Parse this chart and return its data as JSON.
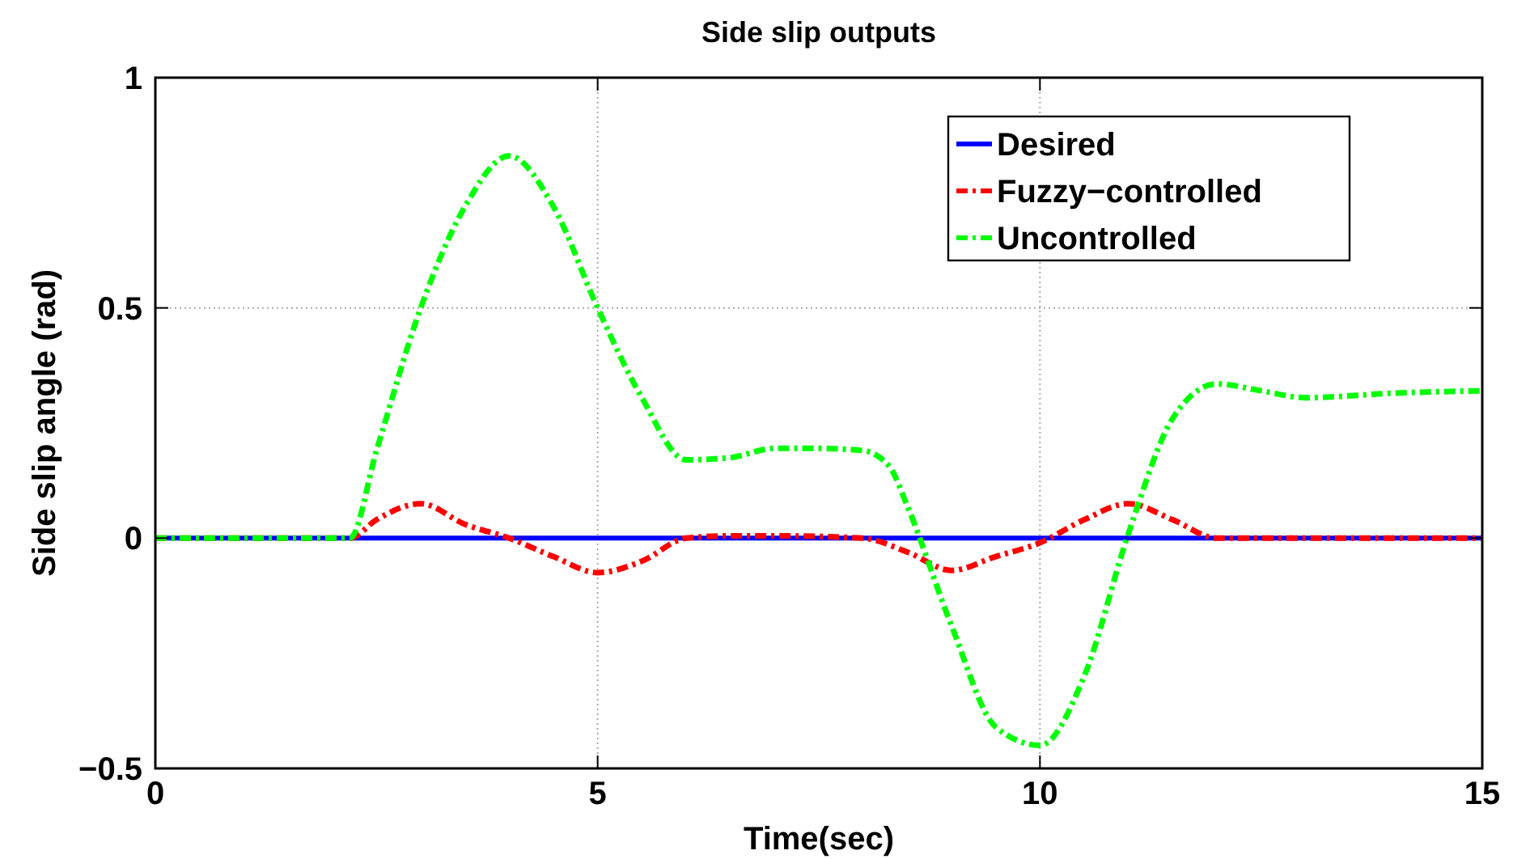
{
  "chart_data": {
    "type": "line",
    "title": "Side slip outputs",
    "xlabel": "Time(sec)",
    "ylabel": "Side slip angle (rad)",
    "xlim": [
      0,
      15
    ],
    "ylim": [
      -0.5,
      1
    ],
    "xticks": [
      0,
      5,
      10,
      15
    ],
    "yticks": [
      -0.5,
      0,
      0.5,
      1
    ],
    "grid": true,
    "legend": "top right",
    "series": [
      {
        "name": "Desired",
        "color": "#0000ff",
        "line_style": "solid",
        "x": [
          0,
          15
        ],
        "values": [
          0,
          0
        ]
      },
      {
        "name": "Fuzzy−controlled",
        "color": "#ff0000",
        "line_style": "dashed",
        "x": [
          0,
          2.2,
          2.5,
          3,
          3.5,
          4,
          4.5,
          5,
          5.5,
          6,
          6.5,
          7,
          8,
          8.5,
          9,
          9.5,
          10,
          10.5,
          11,
          11.5,
          12,
          13,
          15
        ],
        "values": [
          0,
          0,
          0.04,
          0.075,
          0.03,
          0,
          -0.04,
          -0.075,
          -0.05,
          0,
          0.005,
          0.005,
          0,
          -0.03,
          -0.07,
          -0.04,
          -0.01,
          0.04,
          0.075,
          0.04,
          0,
          0,
          0
        ]
      },
      {
        "name": "Uncontrolled",
        "color": "#00ff00",
        "line_style": "dashed",
        "x": [
          0,
          2.2,
          2.5,
          3,
          3.5,
          4,
          4.5,
          5,
          5.5,
          6,
          6.5,
          7,
          7.5,
          8,
          8.3,
          8.5,
          9,
          9.5,
          10,
          10.5,
          11,
          11.5,
          12,
          12.5,
          13,
          14,
          15
        ],
        "values": [
          0,
          0,
          0.19,
          0.5,
          0.72,
          0.83,
          0.72,
          0.5,
          0.305,
          0.17,
          0.175,
          0.195,
          0.195,
          0.19,
          0.155,
          0.07,
          -0.19,
          -0.41,
          -0.45,
          -0.3,
          0.01,
          0.26,
          0.335,
          0.32,
          0.305,
          0.315,
          0.32
        ]
      }
    ]
  }
}
